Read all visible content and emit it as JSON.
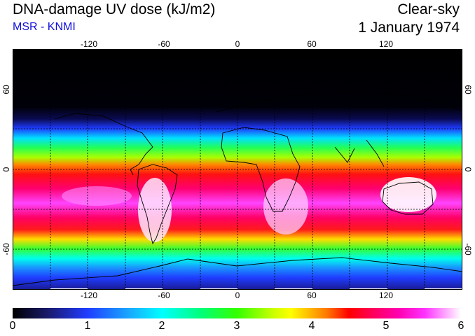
{
  "header": {
    "title": "DNA-damage UV dose (kJ/m2)",
    "subtitle": "MSR - KNMI",
    "mode": "Clear-sky",
    "date": "1 January 1974"
  },
  "map": {
    "lon_labels": [
      "-120",
      "-60",
      "0",
      "60",
      "120"
    ],
    "lat_labels": [
      "60",
      "0",
      "-60"
    ],
    "lon_range": [
      -180,
      180
    ],
    "lat_range": [
      -90,
      90
    ]
  },
  "colorbar": {
    "ticks": [
      "0",
      "1",
      "2",
      "3",
      "4",
      "5",
      "6"
    ],
    "min": 0,
    "max": 6,
    "unit": "kJ/m2"
  }
}
